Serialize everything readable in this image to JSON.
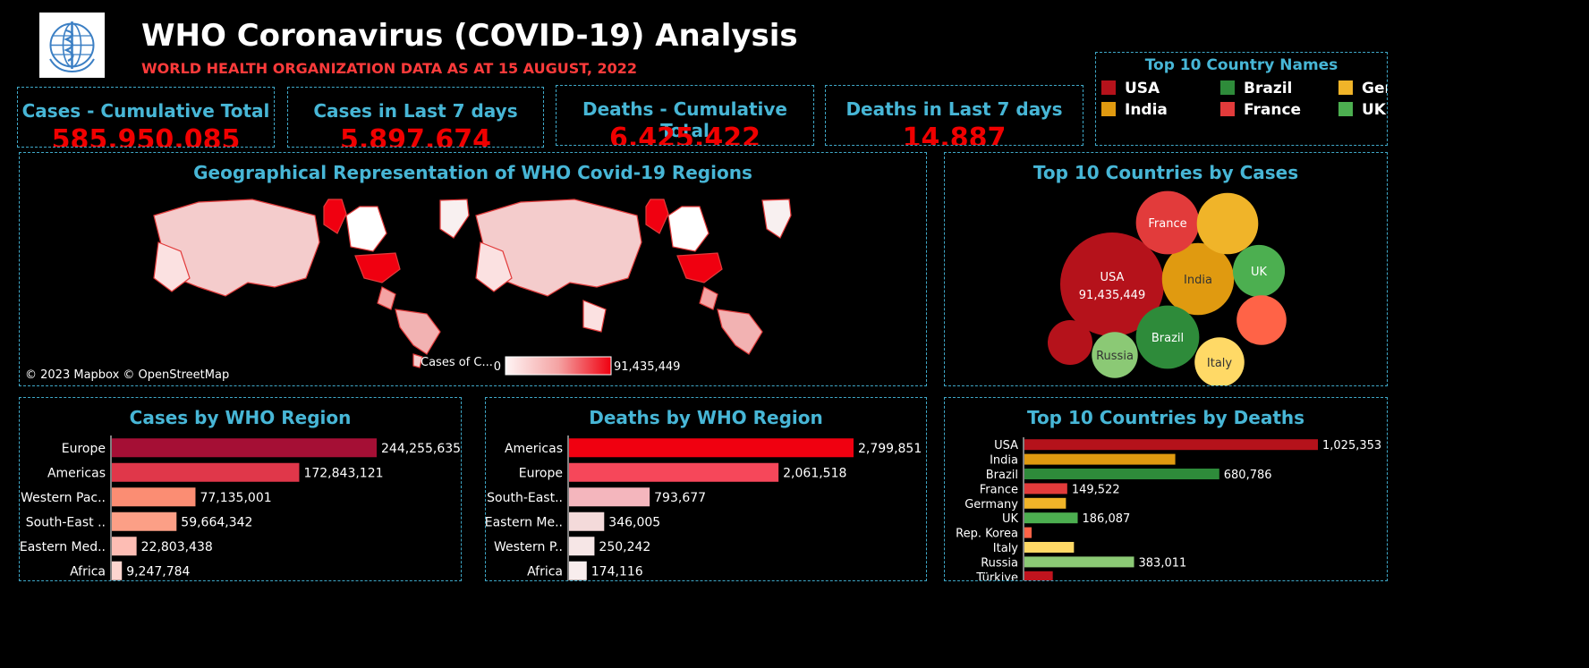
{
  "header": {
    "title": "WHO Coronavirus (COVID-19) Analysis",
    "subtitle": "WORLD HEALTH ORGANIZATION DATA AS AT 15 AUGUST, 2022"
  },
  "kpis": [
    {
      "title": "Cases - Cumulative Total",
      "value": "585,950,085"
    },
    {
      "title": "Cases in Last 7 days",
      "value": "5,897,674"
    },
    {
      "title": "Deaths - Cumulative Total",
      "value": "6,425,422"
    },
    {
      "title": "Deaths in Last 7 days",
      "value": "14,887"
    }
  ],
  "country_legend": {
    "title": "Top 10 Country Names",
    "items": [
      {
        "label": "USA",
        "color": "#b5121b"
      },
      {
        "label": "Brazil",
        "color": "#2e8b3a"
      },
      {
        "label": "Gerr",
        "color": "#f0b429"
      },
      {
        "label": "India",
        "color": "#e09a10"
      },
      {
        "label": "France",
        "color": "#e23b3b"
      },
      {
        "label": "UK",
        "color": "#4caf50"
      }
    ]
  },
  "map": {
    "title": "Geographical Representation of WHO Covid-19 Regions",
    "legend_label": "Cases of C...",
    "legend_min": "0",
    "legend_max": "91,435,449",
    "credit": "© 2023 Mapbox  © OpenStreetMap"
  },
  "chart_data": [
    {
      "id": "bubbles",
      "type": "bubble",
      "title": "Top 10 Countries by Cases",
      "items": [
        {
          "label": "USA",
          "value": 91435449,
          "value_label": "91,435,449",
          "color": "#b5121b"
        },
        {
          "label": "India",
          "value": 44000000,
          "color": "#e09a10"
        },
        {
          "label": "France",
          "value": 34000000,
          "color": "#e23b3b"
        },
        {
          "label": "",
          "value": 32000000,
          "color": "#f0b429"
        },
        {
          "label": "Brazil",
          "value": 34000000,
          "color": "#2e8b3a"
        },
        {
          "label": "UK",
          "value": 23000000,
          "color": "#4caf50"
        },
        {
          "label": "",
          "value": 21000000,
          "color": "#ff6347"
        },
        {
          "label": "",
          "value": 17000000,
          "color": "#b5121b"
        },
        {
          "label": "Russia",
          "value": 18000000,
          "color": "#8bc975"
        },
        {
          "label": "Italy",
          "value": 21000000,
          "color": "#ffd966"
        }
      ]
    },
    {
      "id": "cases_region",
      "type": "bar",
      "title": "Cases by WHO Region",
      "categories": [
        "Europe",
        "Americas",
        "Western Pac..",
        "South-East ..",
        "Eastern Med..",
        "Africa"
      ],
      "values": [
        244255635,
        172843121,
        77135001,
        59664342,
        22803438,
        9247784
      ],
      "labels": [
        "244,255,635",
        "172,843,121",
        "77,135,001",
        "59,664,342",
        "22,803,438",
        "9,247,784"
      ],
      "colors": [
        "#a50f35",
        "#e0374a",
        "#fb8d73",
        "#fc9f86",
        "#fdbdb4",
        "#fdd5cf"
      ]
    },
    {
      "id": "deaths_region",
      "type": "bar",
      "title": "Deaths by WHO Region",
      "categories": [
        "Americas",
        "Europe",
        "South-East..",
        "Eastern Me..",
        "Western P..",
        "Africa"
      ],
      "values": [
        2799851,
        2061518,
        793677,
        346005,
        250242,
        174116
      ],
      "labels": [
        "2,799,851",
        "2,061,518",
        "793,677",
        "346,005",
        "250,242",
        "174,116"
      ],
      "colors": [
        "#f00010",
        "#f6475a",
        "#f4b6bd",
        "#f4dada",
        "#f6e6e6",
        "#f8eded"
      ]
    },
    {
      "id": "deaths_country",
      "type": "bar",
      "title": "Top 10 Countries by Deaths",
      "categories": [
        "USA",
        "India",
        "Brazil",
        "France",
        "Germany",
        "UK",
        "Rep. Korea",
        "Italy",
        "Russia",
        "Türkiye"
      ],
      "values": [
        1025353,
        527000,
        680786,
        149522,
        145000,
        186087,
        25000,
        173000,
        383011,
        99000
      ],
      "labels": [
        "1,025,353",
        "",
        "680,786",
        "149,522",
        "",
        "186,087",
        "",
        "",
        "383,011",
        ""
      ],
      "colors": [
        "#b5121b",
        "#e09a10",
        "#2e8b3a",
        "#e23b3b",
        "#f0b429",
        "#4caf50",
        "#ff6347",
        "#ffd966",
        "#8bc975",
        "#c0141e"
      ]
    }
  ]
}
